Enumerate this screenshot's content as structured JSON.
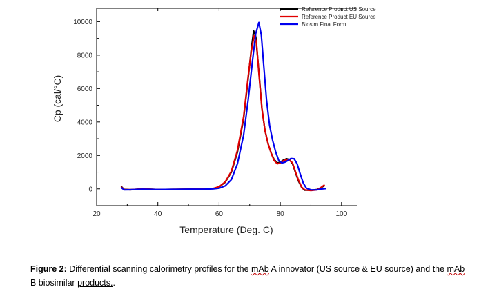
{
  "caption": {
    "label": "Figure 2:",
    "part1": " Differential scanning calorimetry profiles for the ",
    "mab1": "mAb",
    "part2": " ",
    "a": "A",
    "part3": " innovator (US source & EU source) and the ",
    "mab2": "mAb",
    "part4": " B biosimilar ",
    "products": "products.",
    "part5": "."
  },
  "chart_data": {
    "type": "line",
    "xlabel": "Temperature (Deg. C)",
    "ylabel": "Cp (cal/°C)",
    "xlim": [
      20,
      105
    ],
    "ylim": [
      -1000,
      10800
    ],
    "xticks": [
      20,
      40,
      60,
      80,
      100
    ],
    "yticks": [
      0,
      2000,
      4000,
      6000,
      8000,
      10000
    ],
    "legend_position": "top-right",
    "grid": false,
    "series": [
      {
        "name": "Reference Product US Source",
        "color": "#000000",
        "points": [
          [
            28,
            150
          ],
          [
            29,
            -30
          ],
          [
            31,
            -50
          ],
          [
            35,
            0
          ],
          [
            40,
            -40
          ],
          [
            45,
            -30
          ],
          [
            50,
            -20
          ],
          [
            55,
            -10
          ],
          [
            58,
            20
          ],
          [
            60,
            120
          ],
          [
            62,
            400
          ],
          [
            64,
            1000
          ],
          [
            66,
            2200
          ],
          [
            68,
            4200
          ],
          [
            69.5,
            6600
          ],
          [
            70.5,
            8300
          ],
          [
            71.3,
            9450
          ],
          [
            72,
            9100
          ],
          [
            73,
            7000
          ],
          [
            74,
            4800
          ],
          [
            75,
            3500
          ],
          [
            76,
            2700
          ],
          [
            77,
            2150
          ],
          [
            78,
            1750
          ],
          [
            79,
            1550
          ],
          [
            80,
            1600
          ],
          [
            81,
            1720
          ],
          [
            82,
            1800
          ],
          [
            83,
            1750
          ],
          [
            84,
            1500
          ],
          [
            85,
            950
          ],
          [
            86,
            450
          ],
          [
            87,
            80
          ],
          [
            88,
            -80
          ],
          [
            90,
            -80
          ],
          [
            92,
            -40
          ],
          [
            93,
            50
          ],
          [
            94.5,
            200
          ]
        ]
      },
      {
        "name": "Reference Product EU Source",
        "color": "#e00000",
        "points": [
          [
            28,
            120
          ],
          [
            29,
            -40
          ],
          [
            31,
            -50
          ],
          [
            35,
            0
          ],
          [
            40,
            -40
          ],
          [
            45,
            -30
          ],
          [
            50,
            -20
          ],
          [
            55,
            -10
          ],
          [
            58,
            20
          ],
          [
            60,
            130
          ],
          [
            62,
            420
          ],
          [
            64,
            1050
          ],
          [
            66,
            2300
          ],
          [
            68,
            4300
          ],
          [
            69.5,
            6700
          ],
          [
            70.5,
            8200
          ],
          [
            71.4,
            9150
          ],
          [
            72.2,
            8800
          ],
          [
            73,
            6900
          ],
          [
            74,
            4800
          ],
          [
            75,
            3500
          ],
          [
            76,
            2700
          ],
          [
            77,
            2150
          ],
          [
            78,
            1700
          ],
          [
            79,
            1500
          ],
          [
            80,
            1550
          ],
          [
            81,
            1680
          ],
          [
            82,
            1750
          ],
          [
            83,
            1720
          ],
          [
            84,
            1550
          ],
          [
            85,
            1000
          ],
          [
            86,
            500
          ],
          [
            87,
            100
          ],
          [
            88,
            -60
          ],
          [
            90,
            -100
          ],
          [
            92,
            -60
          ],
          [
            93,
            50
          ],
          [
            94.5,
            250
          ]
        ]
      },
      {
        "name": "Biosim Final Form.",
        "color": "#0000ee",
        "points": [
          [
            28,
            80
          ],
          [
            29,
            -60
          ],
          [
            31,
            -50
          ],
          [
            35,
            -20
          ],
          [
            40,
            -40
          ],
          [
            45,
            -30
          ],
          [
            50,
            -20
          ],
          [
            55,
            -20
          ],
          [
            58,
            0
          ],
          [
            60,
            40
          ],
          [
            62,
            180
          ],
          [
            64,
            550
          ],
          [
            66,
            1500
          ],
          [
            68,
            3200
          ],
          [
            69.5,
            5300
          ],
          [
            71,
            7800
          ],
          [
            72,
            9300
          ],
          [
            73,
            9950
          ],
          [
            73.8,
            9200
          ],
          [
            74.5,
            7600
          ],
          [
            75.5,
            5300
          ],
          [
            76.5,
            3800
          ],
          [
            77.5,
            2900
          ],
          [
            78.5,
            2200
          ],
          [
            79.5,
            1700
          ],
          [
            80.5,
            1550
          ],
          [
            81.5,
            1600
          ],
          [
            82.5,
            1700
          ],
          [
            83.5,
            1820
          ],
          [
            84.5,
            1800
          ],
          [
            85.5,
            1500
          ],
          [
            86.5,
            900
          ],
          [
            87.5,
            350
          ],
          [
            88.5,
            50
          ],
          [
            90,
            -60
          ],
          [
            92,
            -60
          ],
          [
            93,
            -20
          ],
          [
            95,
            20
          ]
        ]
      }
    ]
  }
}
